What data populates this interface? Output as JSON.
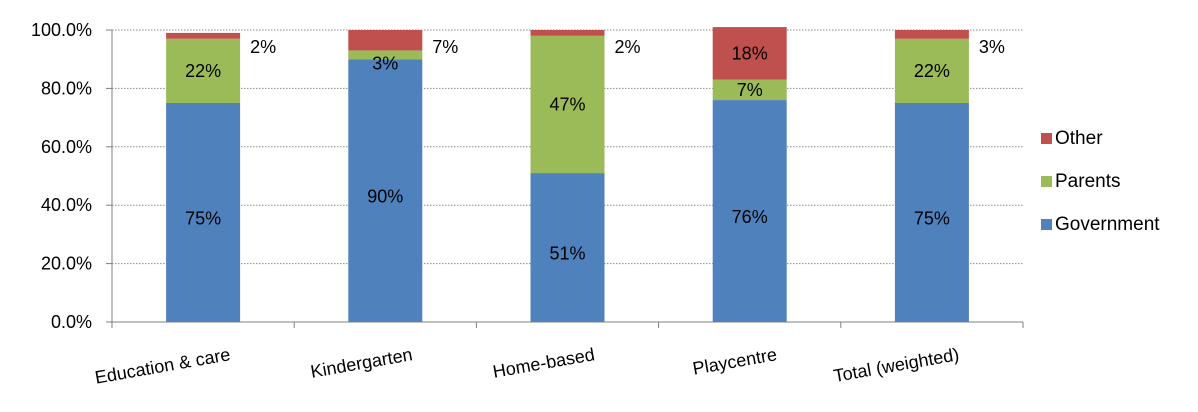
{
  "chart_data": {
    "type": "bar",
    "stacked": true,
    "categories": [
      "Education & care",
      "Kindergarten",
      "Home-based",
      "Playcentre",
      "Total (weighted)"
    ],
    "series": [
      {
        "name": "Government",
        "color": "#4F81BD",
        "values": [
          75,
          90,
          51,
          76,
          75
        ],
        "labels": [
          "75%",
          "90%",
          "51%",
          "76%",
          "75%"
        ]
      },
      {
        "name": "Parents",
        "color": "#9BBB59",
        "values": [
          22,
          3,
          47,
          7,
          22
        ],
        "labels": [
          "22%",
          "3%",
          "47%",
          "7%",
          "22%"
        ]
      },
      {
        "name": "Other",
        "color": "#C0504D",
        "values": [
          2,
          7,
          2,
          18,
          3
        ],
        "labels": [
          "2%",
          "7%",
          "2%",
          "18%",
          "3%"
        ]
      }
    ],
    "ylim": [
      0,
      100
    ],
    "yticks": [
      0,
      20,
      40,
      60,
      80,
      100
    ],
    "ytick_labels": [
      "0.0%",
      "20.0%",
      "40.0%",
      "60.0%",
      "80.0%",
      "100.0%"
    ],
    "grid": true,
    "legend": {
      "position": "right",
      "order": [
        "Other",
        "Parents",
        "Government"
      ]
    }
  }
}
